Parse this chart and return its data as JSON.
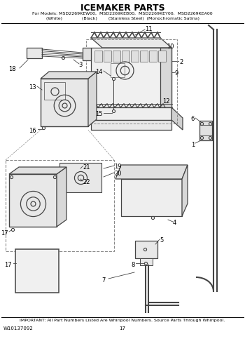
{
  "title": "ICEMAKER PARTS",
  "subtitle_line1": "For Models: MSD2269KEW00,  MSD2269KEB00,  MSD2269KEY00,  MSD2269KEA00",
  "subtitle_line2": "(White)              (Black)        (Stainless Steel)  (Monochromatic Satina)",
  "footer_left": "W10137092",
  "footer_center": "17",
  "footer_note": "IMPORTANT: All Part Numbers Listed Are Whirlpool Numbers. Source Parts Through Whirlpool.",
  "bg_color": "#ffffff",
  "text_color": "#000000",
  "diagram_color": "#444444",
  "line_color": "#333333",
  "fig_width": 3.5,
  "fig_height": 4.83,
  "dpi": 100
}
